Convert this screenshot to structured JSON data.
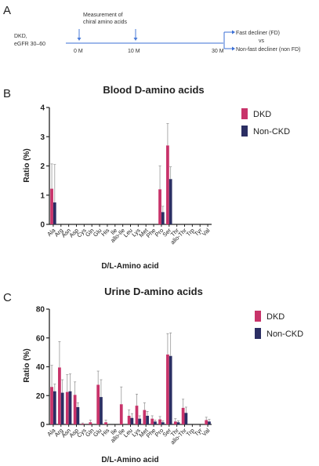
{
  "panels": {
    "a": "A",
    "b": "B",
    "c": "C"
  },
  "timeline": {
    "cohort_line1": "DKD,",
    "cohort_line2": "eGFR 30–60",
    "measure_line1": "Measurement of",
    "measure_line2": "chiral amino acids",
    "t0": "0 M",
    "t1": "10 M",
    "t2": "30 M",
    "outcome_fd": "Fast decliner (FD)",
    "outcome_vs": "vs",
    "outcome_nonfd": "Non-fast decliner (non FD)",
    "colors": {
      "line": "#3b6fd6",
      "arrow": "#4a7bd8"
    }
  },
  "chart_data": [
    {
      "type": "bar",
      "title": "Blood D-amino acids",
      "xlabel": "D/L-Amino acid",
      "ylabel": "Ratio (%)",
      "ylim": [
        0,
        4
      ],
      "yticks": [
        0,
        1,
        2,
        3,
        4
      ],
      "grid": false,
      "legend_position": "top-right",
      "categories": [
        "Ala",
        "Arg",
        "Asn",
        "Asp",
        "Cys",
        "Gln",
        "Glu",
        "His",
        "Ile",
        "allo-Ile",
        "Leu",
        "Lys",
        "Met",
        "Phe",
        "Pro",
        "Ser",
        "Thr",
        "allo-Thr",
        "Trp",
        "Tyr",
        "Val"
      ],
      "series": [
        {
          "name": "DKD",
          "color": "#c8336a",
          "values": [
            1.22,
            0,
            0,
            0,
            0,
            0,
            0,
            0,
            0,
            0,
            0,
            0,
            0,
            0,
            1.2,
            2.7,
            0,
            0,
            0,
            0,
            0
          ],
          "errors": [
            0.85,
            0,
            0,
            0,
            0,
            0,
            0,
            0,
            0,
            0,
            0,
            0,
            0,
            0,
            0.8,
            0.75,
            0,
            0,
            0,
            0,
            0
          ]
        },
        {
          "name": "Non-CKD",
          "color": "#2b2e63",
          "values": [
            0.75,
            0,
            0,
            0,
            0,
            0,
            0,
            0,
            0,
            0,
            0,
            0,
            0,
            0,
            0.42,
            1.55,
            0,
            0,
            0,
            0,
            0
          ],
          "errors": [
            1.3,
            0,
            0,
            0,
            0,
            0,
            0,
            0,
            0,
            0,
            0,
            0,
            0,
            0,
            0.2,
            0.42,
            0,
            0,
            0,
            0,
            0
          ]
        }
      ]
    },
    {
      "type": "bar",
      "title": "Urine D-amino acids",
      "xlabel": "D/L-Amino acid",
      "ylabel": "Ratio (%)",
      "ylim": [
        0,
        80
      ],
      "yticks": [
        0,
        20,
        40,
        60,
        80
      ],
      "grid": false,
      "legend_position": "top-right",
      "categories": [
        "Ala",
        "Arg",
        "Asn",
        "Asp",
        "Cys",
        "Gln",
        "Glu",
        "His",
        "Ile",
        "allo-Ile",
        "Leu",
        "Lys",
        "Met",
        "Phe",
        "Pro",
        "Ser",
        "Thr",
        "allo-Thr",
        "Trp",
        "Tyr",
        "Val"
      ],
      "series": [
        {
          "name": "DKD",
          "color": "#c8336a",
          "values": [
            26,
            39.5,
            22.5,
            20.5,
            0.5,
            1.5,
            27.5,
            1.5,
            0,
            14,
            6,
            13,
            10,
            4,
            3.5,
            48.5,
            2,
            11.5,
            0,
            0,
            3
          ],
          "errors": [
            15,
            18,
            12,
            9,
            0.5,
            1.5,
            9.5,
            1.5,
            0,
            12,
            4,
            8,
            5,
            2,
            2,
            14.5,
            2,
            6,
            0,
            0,
            2
          ]
        },
        {
          "name": "Non-CKD",
          "color": "#2b2e63",
          "values": [
            23,
            22,
            23,
            12,
            0,
            0,
            19,
            0,
            0,
            0,
            4.5,
            4,
            6,
            2,
            1.5,
            47.5,
            1.5,
            8,
            0,
            0,
            2
          ],
          "errors": [
            5,
            9,
            12,
            3,
            0,
            0,
            12,
            0,
            0,
            0,
            3,
            2,
            3,
            1,
            1,
            16,
            1,
            4,
            0,
            0,
            1.5
          ]
        }
      ]
    }
  ]
}
